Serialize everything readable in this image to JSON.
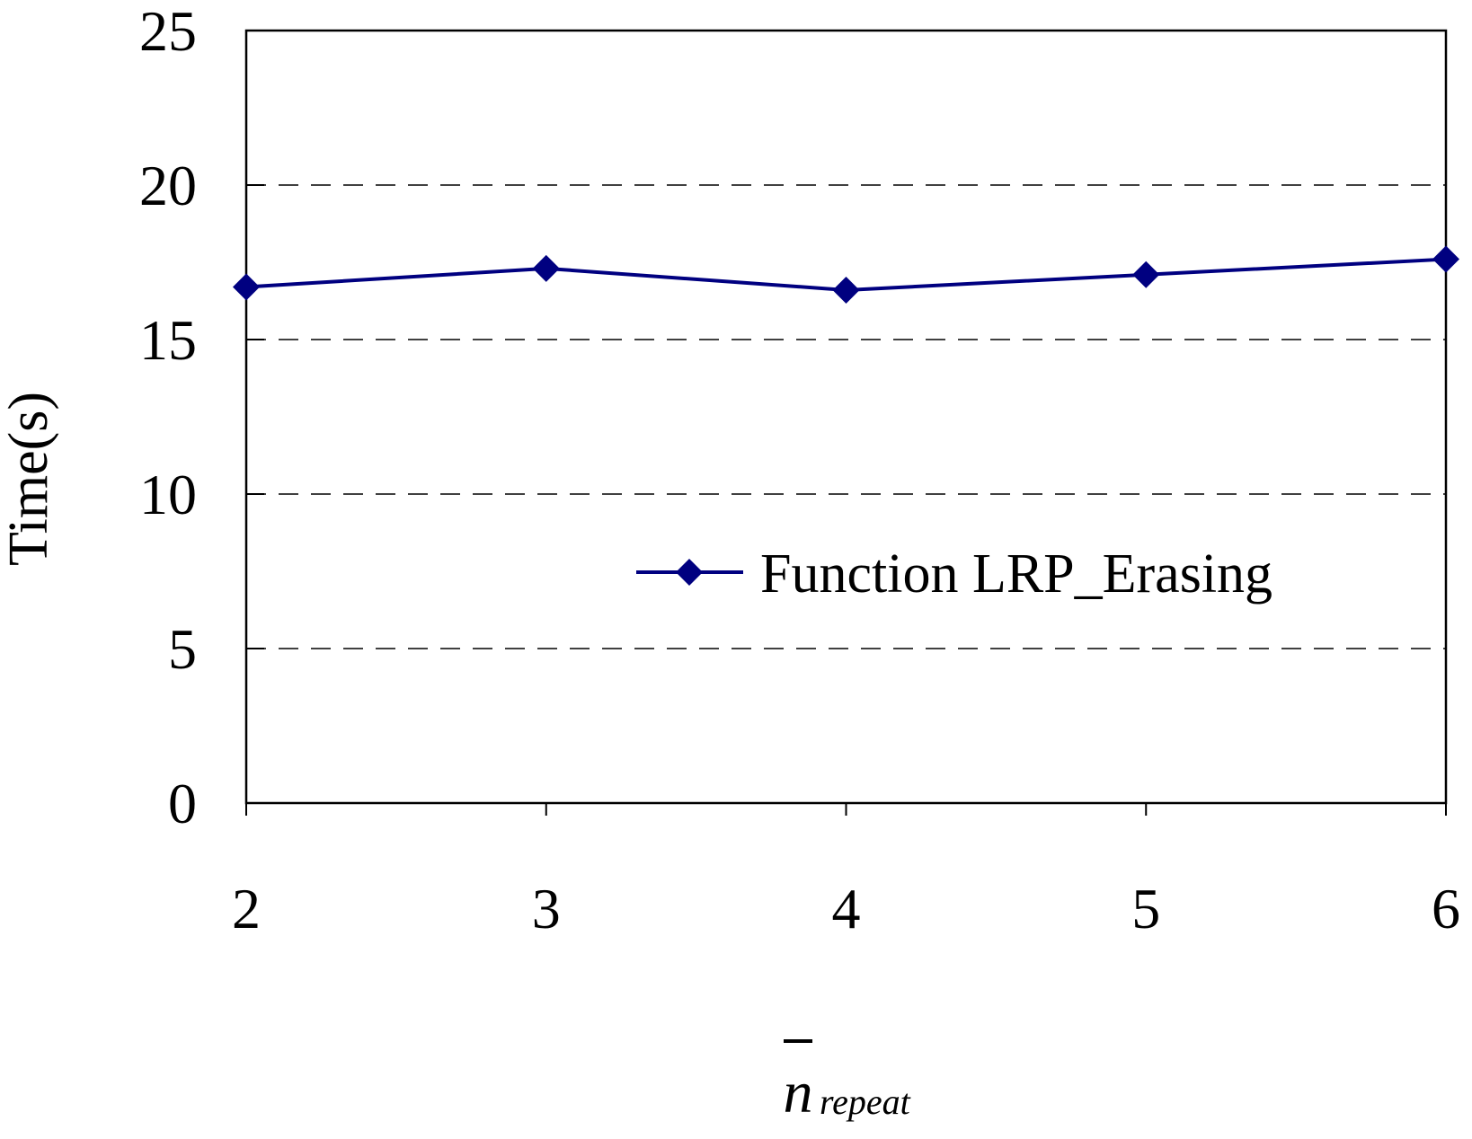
{
  "chart_data": {
    "type": "line",
    "y_label": "Time(s)",
    "x_label": "n",
    "x_label_subscript": "repeat",
    "x": [
      2,
      3,
      4,
      5,
      6
    ],
    "series": [
      {
        "name": "Function LRP_Erasing",
        "color": "#000080",
        "values": [
          16.7,
          17.3,
          16.6,
          17.1,
          17.6
        ]
      }
    ],
    "xlim": [
      2,
      6
    ],
    "xticks": [
      2,
      3,
      4,
      5,
      6
    ],
    "ylim": [
      0,
      25
    ],
    "yticks": [
      0,
      5,
      10,
      15,
      20,
      25
    ],
    "grid": true,
    "legend": "center-right"
  }
}
